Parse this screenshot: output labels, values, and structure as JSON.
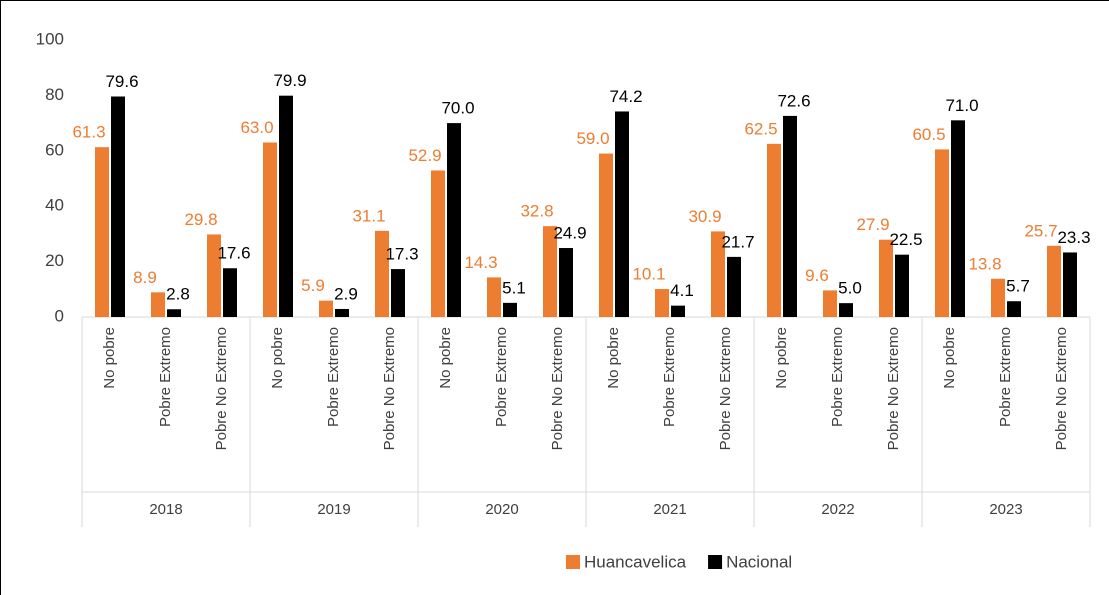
{
  "chart_data": {
    "type": "bar",
    "groups": [
      "2018",
      "2019",
      "2020",
      "2021",
      "2022",
      "2023"
    ],
    "categories": [
      "No pobre",
      "Pobre Extremo",
      "Pobre No Extremo",
      "No pobre",
      "Pobre Extremo",
      "Pobre No Extremo",
      "No pobre",
      "Pobre Extremo",
      "Pobre No Extremo",
      "No pobre",
      "Pobre Extremo",
      "Pobre No Extremo",
      "No pobre",
      "Pobre Extremo",
      "Pobre No Extremo",
      "No pobre",
      "Pobre Extremo",
      "Pobre No Extremo"
    ],
    "series": [
      {
        "name": "Huancavelica",
        "color": "#ed7d31",
        "values": [
          61.3,
          8.9,
          29.8,
          63.0,
          5.9,
          31.1,
          52.9,
          14.3,
          32.8,
          59.0,
          10.1,
          30.9,
          62.5,
          9.6,
          27.9,
          60.5,
          13.8,
          25.7
        ],
        "value_labels": [
          "61.3",
          "8.9",
          "29.8",
          "63.0",
          "5.9",
          "31.1",
          "52.9",
          "14.3",
          "32.8",
          "59.0",
          "10.1",
          "30.9",
          "62.5",
          "9.6",
          "27.9",
          "60.5",
          "13.8",
          "25.7"
        ]
      },
      {
        "name": "Nacional",
        "color": "#000000",
        "values": [
          79.6,
          2.8,
          17.6,
          79.9,
          2.9,
          17.3,
          70.0,
          5.1,
          24.9,
          74.2,
          4.1,
          21.7,
          72.6,
          5.0,
          22.5,
          71.0,
          5.7,
          23.3
        ],
        "value_labels": [
          "79.6",
          "2.8",
          "17.6",
          "79.9",
          "2.9",
          "17.3",
          "70.0",
          "5.1",
          "24.9",
          "74.2",
          "4.1",
          "21.7",
          "72.6",
          "5.0",
          "22.5",
          "71.0",
          "5.7",
          "23.3"
        ]
      }
    ],
    "ylim": [
      0,
      100
    ],
    "yticks": [
      0,
      20,
      40,
      60,
      80,
      100
    ],
    "grid": false,
    "legend": "bottom"
  }
}
